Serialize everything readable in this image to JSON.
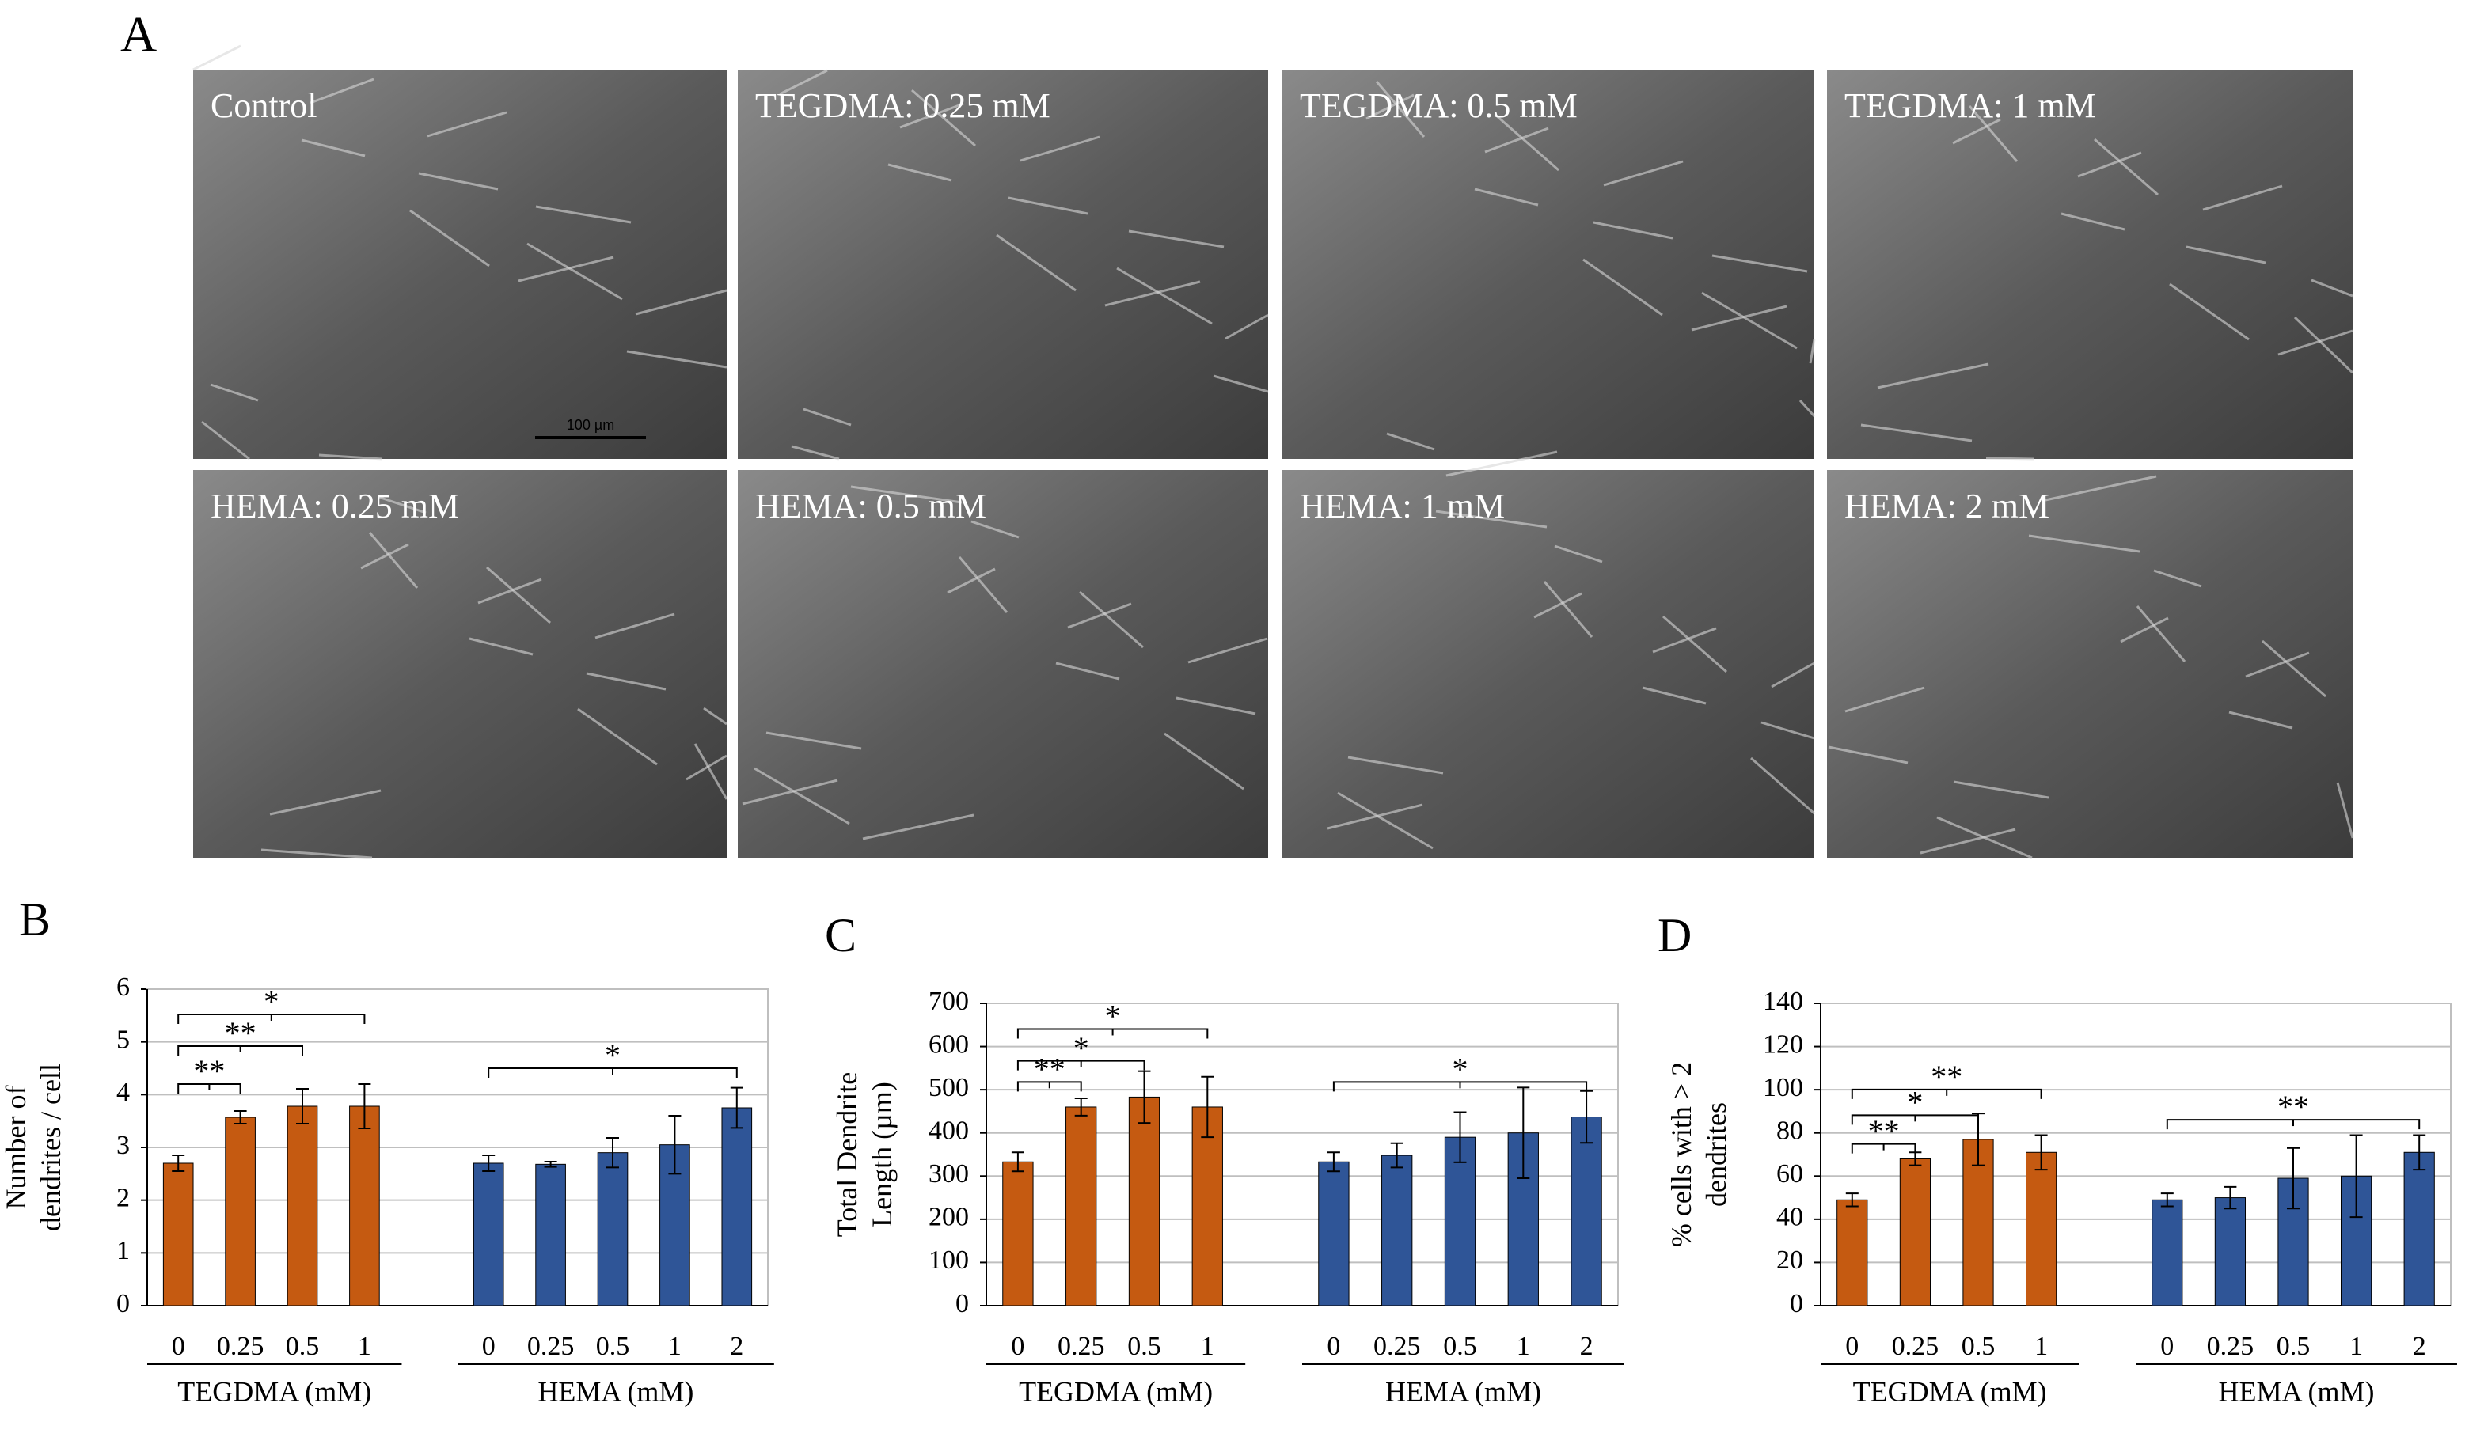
{
  "panels": {
    "label": "A",
    "scale_bar": "100 µm",
    "images": [
      "Control",
      "TEGDMA:  0.25 mM",
      "TEGDMA:  0.5 mM",
      "TEGDMA:  1 mM",
      "HEMA:  0.25 mM",
      "HEMA:  0.5 mM",
      "HEMA:  1 mM",
      "HEMA:  2 mM"
    ]
  },
  "chart_data": [
    {
      "type": "bar",
      "label": "B",
      "ylabel": [
        "Number of",
        "dendrites / cell"
      ],
      "ylim": [
        0,
        6
      ],
      "yticks": [
        0,
        1,
        2,
        3,
        4,
        5,
        6
      ],
      "grid": true,
      "series": [
        {
          "name": "TEGDMA (mM)",
          "color": "#c55a11",
          "categories": [
            "0",
            "0.25",
            "0.5",
            "1"
          ],
          "values": [
            2.7,
            3.57,
            3.78,
            3.78
          ],
          "errors": [
            0.15,
            0.12,
            0.33,
            0.42
          ]
        },
        {
          "name": "HEMA (mM)",
          "color": "#2f5597",
          "categories": [
            "0",
            "0.25",
            "0.5",
            "1",
            "2"
          ],
          "values": [
            2.7,
            2.68,
            2.9,
            3.05,
            3.75
          ],
          "errors": [
            0.15,
            0.05,
            0.28,
            0.55,
            0.38
          ]
        }
      ],
      "annotations": [
        "**",
        "**",
        "*",
        "*"
      ]
    },
    {
      "type": "bar",
      "label": "C",
      "ylabel": [
        "Total Dendrite",
        "Length (µm)"
      ],
      "ylim": [
        0,
        700
      ],
      "yticks": [
        0,
        100,
        200,
        300,
        400,
        500,
        600,
        700
      ],
      "grid": true,
      "series": [
        {
          "name": "TEGDMA (mM)",
          "color": "#c55a11",
          "categories": [
            "0",
            "0.25",
            "0.5",
            "1"
          ],
          "values": [
            333,
            460,
            483,
            460
          ],
          "errors": [
            22,
            20,
            60,
            70
          ]
        },
        {
          "name": "HEMA (mM)",
          "color": "#2f5597",
          "categories": [
            "0",
            "0.25",
            "0.5",
            "1",
            "2"
          ],
          "values": [
            333,
            348,
            390,
            400,
            437
          ],
          "errors": [
            22,
            28,
            58,
            105,
            60
          ]
        }
      ],
      "annotations": [
        "**",
        "*",
        "*",
        "*"
      ]
    },
    {
      "type": "bar",
      "label": "D",
      "ylabel": [
        "% cells with > 2",
        "dendrites"
      ],
      "ylim": [
        0,
        140
      ],
      "yticks": [
        0,
        20,
        40,
        60,
        80,
        100,
        120,
        140
      ],
      "grid": true,
      "series": [
        {
          "name": "TEGDMA (mM)",
          "color": "#c55a11",
          "categories": [
            "0",
            "0.25",
            "0.5",
            "1"
          ],
          "values": [
            49,
            68,
            77,
            71
          ],
          "errors": [
            3,
            3,
            12,
            8
          ]
        },
        {
          "name": "HEMA (mM)",
          "color": "#2f5597",
          "categories": [
            "0",
            "0.25",
            "0.5",
            "1",
            "2"
          ],
          "values": [
            49,
            50,
            59,
            60,
            71
          ],
          "errors": [
            3,
            5,
            14,
            19,
            8
          ]
        }
      ],
      "annotations": [
        "**",
        "*",
        "**",
        "**"
      ]
    }
  ]
}
